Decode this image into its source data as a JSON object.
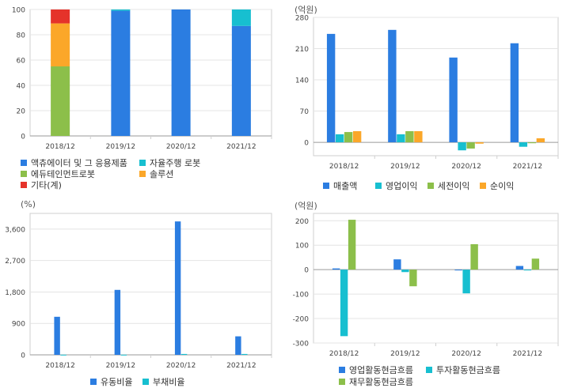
{
  "colors": {
    "blue": "#2b7de1",
    "cyan": "#17bfd0",
    "green": "#8cbf4a",
    "orange": "#fba729",
    "red": "#e5332a"
  },
  "chart_data": [
    {
      "id": "composition",
      "type": "bar",
      "stacked": true,
      "unit": "",
      "categories": [
        "2018/12",
        "2019/12",
        "2020/12",
        "2021/12"
      ],
      "ylim": [
        0,
        100
      ],
      "yticks": [
        "0",
        "20",
        "40",
        "60",
        "80",
        "100"
      ],
      "grid": true,
      "series": [
        {
          "name": "액츄에이터 및 그 응용제품",
          "color": "#2b7de1",
          "values": [
            0,
            99,
            100,
            87
          ]
        },
        {
          "name": "자율주행 로봇",
          "color": "#17bfd0",
          "values": [
            0,
            1,
            0,
            13
          ]
        },
        {
          "name": "에듀테인먼트로봇",
          "color": "#8cbf4a",
          "values": [
            55,
            0,
            0,
            0
          ]
        },
        {
          "name": "솔루션",
          "color": "#fba729",
          "values": [
            34,
            0,
            0,
            0
          ]
        },
        {
          "name": "기타(계)",
          "color": "#e5332a",
          "values": [
            11,
            0,
            0,
            0
          ]
        }
      ]
    },
    {
      "id": "income",
      "type": "bar",
      "unit": "(억원)",
      "categories": [
        "2018/12",
        "2019/12",
        "2020/12",
        "2021/12"
      ],
      "ylim": [
        -30,
        280
      ],
      "yticks": [
        "0",
        "70",
        "140",
        "210",
        "280"
      ],
      "grid": true,
      "series": [
        {
          "name": "매출액",
          "color": "#2b7de1",
          "values": [
            243,
            252,
            190,
            222
          ]
        },
        {
          "name": "영업이익",
          "color": "#17bfd0",
          "values": [
            18,
            18,
            -18,
            -10
          ]
        },
        {
          "name": "세전이익",
          "color": "#8cbf4a",
          "values": [
            23,
            25,
            -14,
            -2
          ]
        },
        {
          "name": "순이익",
          "color": "#fba729",
          "values": [
            25,
            25,
            -3,
            9
          ]
        }
      ]
    },
    {
      "id": "ratios",
      "type": "bar",
      "unit": "(%)",
      "categories": [
        "2018/12",
        "2019/12",
        "2020/12",
        "2021/12"
      ],
      "ylim": [
        0,
        4050
      ],
      "yticks": [
        "0",
        "900",
        "1,800",
        "2,700",
        "3,600"
      ],
      "grid": true,
      "series": [
        {
          "name": "유동비율",
          "color": "#2b7de1",
          "values": [
            1090,
            1860,
            3820,
            530
          ]
        },
        {
          "name": "부채비율",
          "color": "#17bfd0",
          "values": [
            5,
            5,
            25,
            25
          ]
        }
      ]
    },
    {
      "id": "cashflow",
      "type": "bar",
      "unit": "(억원)",
      "categories": [
        "2018/12",
        "2019/12",
        "2020/12",
        "2021/12"
      ],
      "ylim": [
        -300,
        230
      ],
      "yticks": [
        "-300",
        "-200",
        "-100",
        "0",
        "100",
        "200"
      ],
      "grid": true,
      "series": [
        {
          "name": "영업활동현금흐름",
          "color": "#2b7de1",
          "values": [
            5,
            42,
            -3,
            15
          ]
        },
        {
          "name": "투자활동현금흐름",
          "color": "#17bfd0",
          "values": [
            -272,
            -10,
            -97,
            -3
          ]
        },
        {
          "name": "재무활동현금흐름",
          "color": "#8cbf4a",
          "values": [
            204,
            -68,
            104,
            45
          ]
        }
      ]
    }
  ]
}
